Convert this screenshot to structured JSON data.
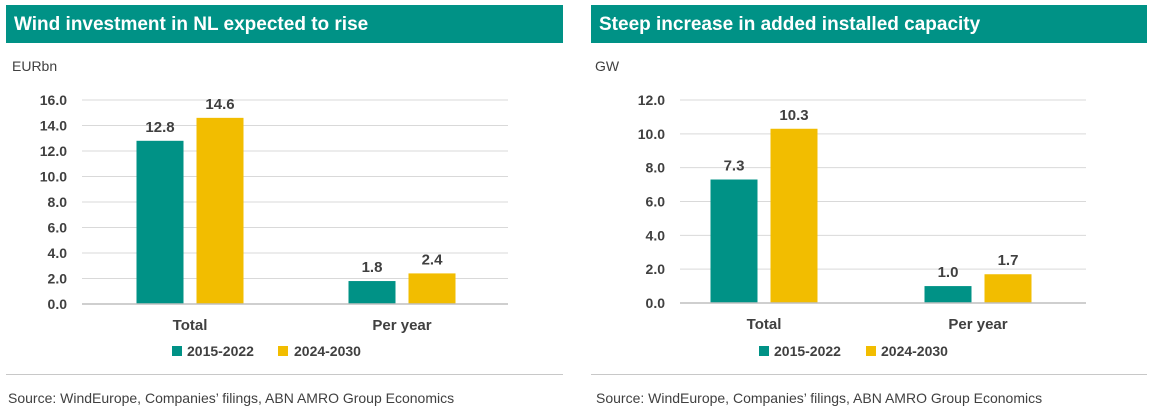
{
  "colors": {
    "header": "#009286",
    "series_2015": "#009286",
    "series_2024": "#f2bd00",
    "text": "#404040",
    "grid": "#d9d9d9"
  },
  "chart_data": [
    {
      "type": "bar",
      "title": "Wind investment in NL expected to rise",
      "ylabel": "EURbn",
      "categories": [
        "Total",
        "Per year"
      ],
      "series": [
        {
          "name": "2015-2022",
          "values": [
            12.8,
            1.8
          ]
        },
        {
          "name": "2024-2030",
          "values": [
            14.6,
            2.4
          ]
        }
      ],
      "ylim": [
        0,
        16
      ],
      "yticks": [
        "16.0",
        "14.0",
        "12.0",
        "10.0",
        "8.0",
        "6.0",
        "4.0",
        "2.0",
        "0.0"
      ],
      "grid": true,
      "legend": "bottom",
      "source": "Source: WindEurope, Companies’ filings, ABN AMRO Group Economics"
    },
    {
      "type": "bar",
      "title": "Steep increase in added installed capacity",
      "ylabel": "GW",
      "categories": [
        "Total",
        "Per year"
      ],
      "series": [
        {
          "name": "2015-2022",
          "values": [
            7.3,
            1.0
          ]
        },
        {
          "name": "2024-2030",
          "values": [
            10.3,
            1.7
          ]
        }
      ],
      "ylim": [
        0,
        12
      ],
      "yticks": [
        "12.0",
        "10.0",
        "8.0",
        "6.0",
        "4.0",
        "2.0",
        "0.0"
      ],
      "grid": true,
      "legend": "bottom",
      "source": "Source: WindEurope, Companies’ filings, ABN AMRO Group Economics"
    }
  ]
}
